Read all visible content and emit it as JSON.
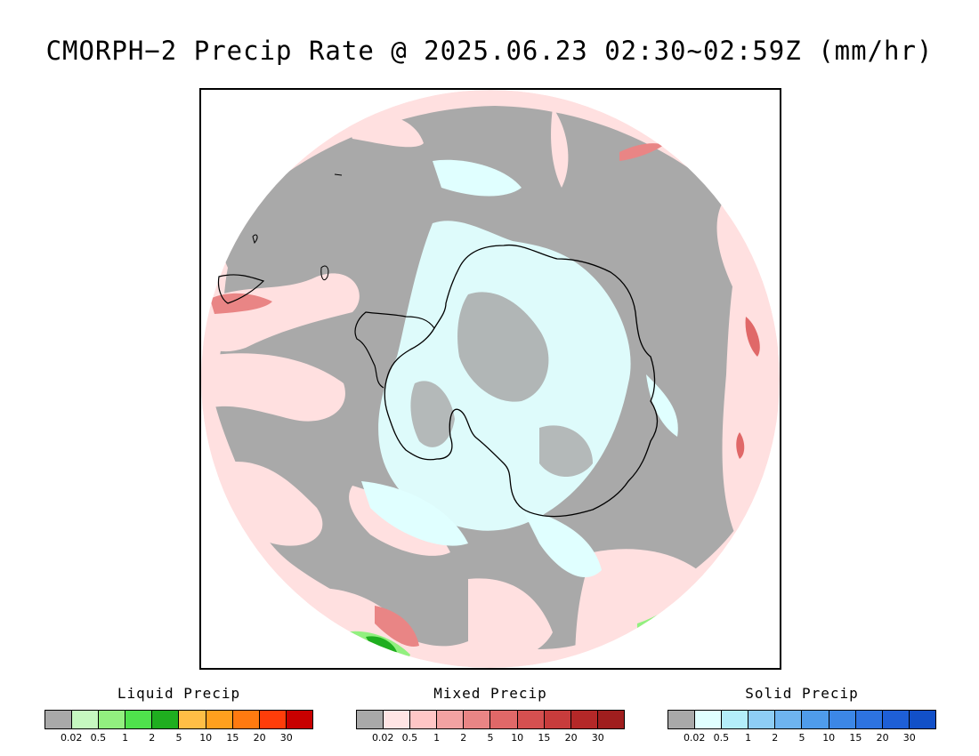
{
  "title": "CMORPH−2 Precip Rate @ 2025.06.23 02:30~02:59Z (mm/hr)",
  "map": {
    "projection": "south-polar-stereographic",
    "background_color": "#a9a9a9",
    "coastline_color": "#000000"
  },
  "legends": [
    {
      "id": "liquid",
      "title": "Liquid Precip",
      "colors": [
        "#a9a9a9",
        "#c6f8c0",
        "#92f07f",
        "#4fe24c",
        "#1fae1f",
        "#ffbe46",
        "#ffa01e",
        "#ff7a10",
        "#ff3d0a",
        "#c80000"
      ],
      "ticks": [
        "0.02",
        "0.5",
        "1",
        "2",
        "5",
        "10",
        "15",
        "20",
        "30"
      ]
    },
    {
      "id": "mixed",
      "title": "Mixed Precip",
      "colors": [
        "#a9a9a9",
        "#ffe4e4",
        "#ffc6c6",
        "#f2a2a2",
        "#e98585",
        "#e06868",
        "#d55050",
        "#c83c3c",
        "#b42828",
        "#a01e1e"
      ],
      "ticks": [
        "0.02",
        "0.5",
        "1",
        "2",
        "5",
        "10",
        "15",
        "20",
        "30"
      ]
    },
    {
      "id": "solid",
      "title": "Solid Precip",
      "colors": [
        "#a9a9a9",
        "#e0ffff",
        "#b4eefa",
        "#8ecdf5",
        "#6eb4f0",
        "#4f9ceb",
        "#3c87e6",
        "#2d73e0",
        "#1e5fd6",
        "#1250c8"
      ],
      "ticks": [
        "0.02",
        "0.5",
        "1",
        "2",
        "5",
        "10",
        "15",
        "20",
        "30"
      ]
    }
  ]
}
